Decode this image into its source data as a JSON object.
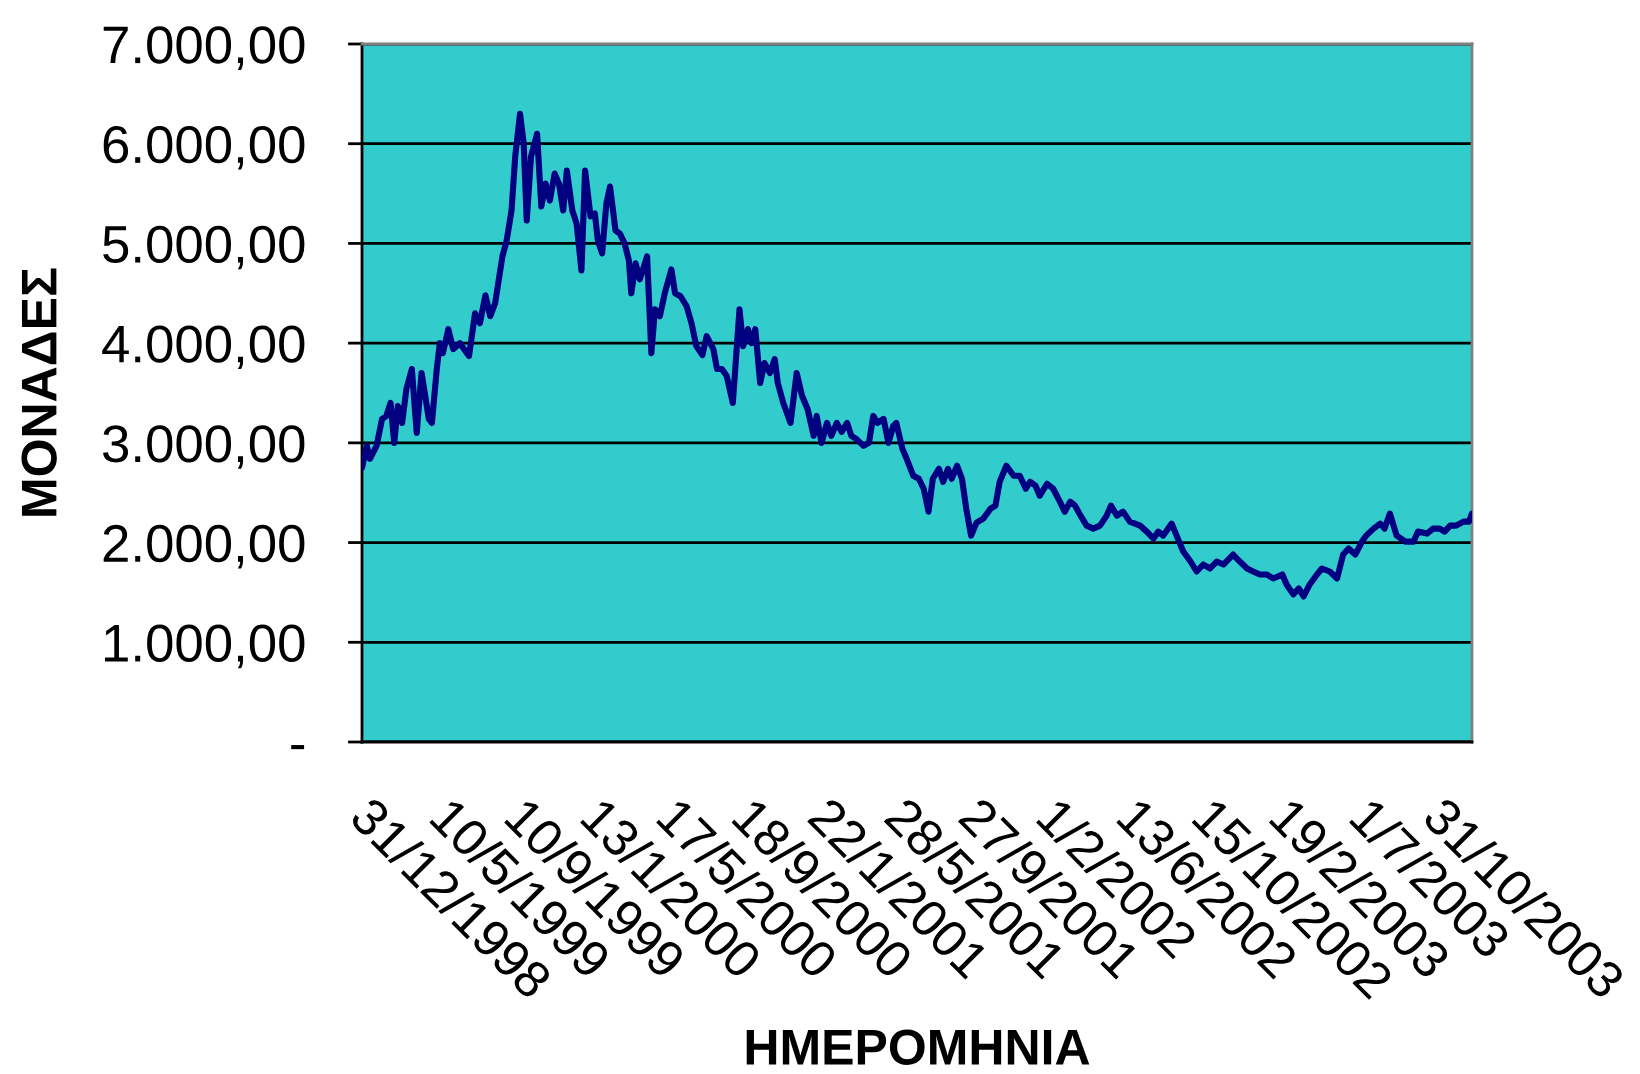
{
  "chart_data": {
    "type": "line",
    "xlabel": "ΗΜΕΡΟΜΗΝΙΑ",
    "ylabel": "ΜΟΝΑΔΕΣ",
    "x": [
      "1998-12-31",
      "1999-01-08",
      "1999-01-13",
      "1999-01-24",
      "1999-02-02",
      "1999-02-09",
      "1999-02-16",
      "1999-02-22",
      "1999-02-28",
      "1999-03-07",
      "1999-03-14",
      "1999-03-23",
      "1999-03-31",
      "1999-04-08",
      "1999-04-20",
      "1999-04-25",
      "1999-05-03",
      "1999-05-08",
      "1999-05-13",
      "1999-05-22",
      "1999-05-30",
      "1999-06-10",
      "1999-06-25",
      "1999-07-05",
      "1999-07-13",
      "1999-07-22",
      "1999-07-30",
      "1999-08-07",
      "1999-08-19",
      "1999-08-26",
      "1999-09-03",
      "1999-09-09",
      "1999-09-17",
      "1999-09-23",
      "1999-09-28",
      "1999-10-05",
      "1999-10-15",
      "1999-10-22",
      "1999-10-29",
      "1999-11-05",
      "1999-11-13",
      "1999-11-20",
      "1999-11-27",
      "1999-12-03",
      "1999-12-12",
      "1999-12-19",
      "1999-12-27",
      "2000-01-02",
      "2000-01-11",
      "2000-01-18",
      "2000-01-23",
      "2000-01-30",
      "2000-02-06",
      "2000-02-12",
      "2000-02-21",
      "2000-02-28",
      "2000-03-07",
      "2000-03-14",
      "2000-03-18",
      "2000-03-25",
      "2000-04-01",
      "2000-04-13",
      "2000-04-20",
      "2000-04-26",
      "2000-05-04",
      "2000-05-12",
      "2000-05-23",
      "2000-05-29",
      "2000-06-07",
      "2000-06-17",
      "2000-06-25",
      "2000-07-03",
      "2000-07-13",
      "2000-07-20",
      "2000-07-31",
      "2000-08-06",
      "2000-08-14",
      "2000-08-22",
      "2000-09-01",
      "2000-09-12",
      "2000-09-18",
      "2000-09-26",
      "2000-10-02",
      "2000-10-08",
      "2000-10-16",
      "2000-10-23",
      "2000-11-01",
      "2000-11-09",
      "2000-11-14",
      "2000-11-23",
      "2000-12-05",
      "2000-12-15",
      "2000-12-24",
      "2001-01-02",
      "2001-01-12",
      "2001-01-17",
      "2001-01-25",
      "2001-02-03",
      "2001-02-10",
      "2001-02-19",
      "2001-02-27",
      "2001-03-08",
      "2001-03-15",
      "2001-03-23",
      "2001-04-04",
      "2001-04-13",
      "2001-04-20",
      "2001-04-27",
      "2001-05-07",
      "2001-05-15",
      "2001-05-23",
      "2001-05-28",
      "2001-06-07",
      "2001-06-14",
      "2001-06-25",
      "2001-07-04",
      "2001-07-12",
      "2001-07-20",
      "2001-07-27",
      "2001-08-06",
      "2001-08-13",
      "2001-08-21",
      "2001-08-27",
      "2001-09-05",
      "2001-09-13",
      "2001-09-20",
      "2001-09-28",
      "2001-10-07",
      "2001-10-18",
      "2001-10-30",
      "2001-11-07",
      "2001-11-14",
      "2001-11-25",
      "2001-12-07",
      "2001-12-17",
      "2001-12-27",
      "2002-01-03",
      "2002-01-12",
      "2002-01-19",
      "2002-01-31",
      "2002-02-10",
      "2002-02-21",
      "2002-03-01",
      "2002-03-10",
      "2002-03-18",
      "2002-03-27",
      "2002-04-06",
      "2002-04-17",
      "2002-04-28",
      "2002-05-09",
      "2002-05-16",
      "2002-05-26",
      "2002-06-05",
      "2002-06-16",
      "2002-07-03",
      "2002-07-14",
      "2002-07-25",
      "2002-08-02",
      "2002-08-10",
      "2002-08-24",
      "2002-09-01",
      "2002-09-12",
      "2002-09-24",
      "2002-10-04",
      "2002-10-15",
      "2002-10-26",
      "2002-11-06",
      "2002-11-17",
      "2002-12-03",
      "2002-12-14",
      "2002-12-26",
      "2003-01-05",
      "2003-01-16",
      "2003-01-27",
      "2003-02-07",
      "2003-02-22",
      "2003-03-01",
      "2003-03-12",
      "2003-03-21",
      "2003-03-29",
      "2003-04-08",
      "2003-04-20",
      "2003-04-28",
      "2003-05-11",
      "2003-05-23",
      "2003-06-02",
      "2003-06-11",
      "2003-06-22",
      "2003-07-03",
      "2003-07-10",
      "2003-07-22",
      "2003-08-02",
      "2003-08-09",
      "2003-08-18",
      "2003-08-29",
      "2003-09-12",
      "2003-09-26",
      "2003-10-03",
      "2003-10-18",
      "2003-10-28",
      "2003-11-08",
      "2003-11-16",
      "2003-11-25",
      "2003-12-05",
      "2003-12-17",
      "2003-12-26",
      "2003-12-31"
    ],
    "series": [
      {
        "color": "#000080",
        "values": [
          2750,
          2970,
          2840,
          2970,
          3240,
          3270,
          3400,
          3000,
          3370,
          3200,
          3540,
          3740,
          3100,
          3700,
          3240,
          3200,
          3740,
          4000,
          3900,
          4140,
          3940,
          4000,
          3870,
          4300,
          4200,
          4480,
          4270,
          4400,
          4870,
          5030,
          5330,
          5870,
          6300,
          6000,
          5230,
          5870,
          6100,
          5370,
          5600,
          5430,
          5700,
          5600,
          5330,
          5730,
          5330,
          5200,
          4730,
          5730,
          5270,
          5300,
          5030,
          4900,
          5400,
          5570,
          5130,
          5100,
          5000,
          4830,
          4500,
          4800,
          4640,
          4870,
          3900,
          4340,
          4270,
          4500,
          4740,
          4500,
          4470,
          4370,
          4200,
          3970,
          3880,
          4070,
          3940,
          3740,
          3740,
          3670,
          3400,
          4340,
          3970,
          4140,
          4000,
          4140,
          3600,
          3800,
          3700,
          3840,
          3600,
          3400,
          3200,
          3700,
          3470,
          3340,
          3070,
          3270,
          3000,
          3200,
          3070,
          3200,
          3110,
          3200,
          3070,
          3040,
          2970,
          3000,
          3270,
          3200,
          3240,
          3000,
          3170,
          3200,
          2940,
          2840,
          2670,
          2640,
          2540,
          2310,
          2640,
          2740,
          2610,
          2740,
          2640,
          2770,
          2640,
          2340,
          2070,
          2200,
          2240,
          2340,
          2370,
          2610,
          2770,
          2670,
          2670,
          2540,
          2610,
          2570,
          2470,
          2590,
          2540,
          2410,
          2310,
          2410,
          2370,
          2270,
          2170,
          2140,
          2170,
          2270,
          2370,
          2270,
          2310,
          2210,
          2170,
          2110,
          2040,
          2110,
          2070,
          2190,
          2070,
          1910,
          1810,
          1710,
          1780,
          1740,
          1810,
          1780,
          1880,
          1810,
          1740,
          1710,
          1680,
          1680,
          1640,
          1680,
          1580,
          1480,
          1540,
          1460,
          1580,
          1680,
          1740,
          1710,
          1640,
          1880,
          1940,
          1880,
          2010,
          2070,
          2140,
          2190,
          2140,
          2290,
          2070,
          2010,
          2010,
          2110,
          2090,
          2140,
          2140,
          2110,
          2170,
          2170,
          2210,
          2210,
          2290
        ]
      }
    ],
    "xlim": [
      "1998-12-31",
      "2003-12-31"
    ],
    "xticks": [
      {
        "value": "1998-12-31",
        "label": "31/12/1998"
      },
      {
        "value": "1999-05-10",
        "label": "10/5/1999"
      },
      {
        "value": "1999-09-10",
        "label": "10/9/1999"
      },
      {
        "value": "2000-01-13",
        "label": "13/1/2000"
      },
      {
        "value": "2000-05-17",
        "label": "17/5/2000"
      },
      {
        "value": "2000-09-18",
        "label": "18/9/2000"
      },
      {
        "value": "2001-01-22",
        "label": "22/1/2001"
      },
      {
        "value": "2001-05-28",
        "label": "28/5/2001"
      },
      {
        "value": "2001-09-27",
        "label": "27/9/2001"
      },
      {
        "value": "2002-02-01",
        "label": "1/2/2002"
      },
      {
        "value": "2002-06-13",
        "label": "13/6/2002"
      },
      {
        "value": "2002-10-15",
        "label": "15/10/2002"
      },
      {
        "value": "2003-02-19",
        "label": "19/2/2003"
      },
      {
        "value": "2003-07-01",
        "label": "1/7/2003"
      },
      {
        "value": "2003-10-31",
        "label": "31/10/2003"
      }
    ],
    "ylim": [
      0,
      7000
    ],
    "yticks": [
      {
        "value": 0,
        "label": "-"
      },
      {
        "value": 1000,
        "label": "1.000,00"
      },
      {
        "value": 2000,
        "label": "2.000,00"
      },
      {
        "value": 3000,
        "label": "3.000,00"
      },
      {
        "value": 4000,
        "label": "4.000,00"
      },
      {
        "value": 5000,
        "label": "5.000,00"
      },
      {
        "value": 6000,
        "label": "6.000,00"
      },
      {
        "value": 7000,
        "label": "7.000,00"
      }
    ],
    "grid": "y",
    "line_style": "solid"
  }
}
